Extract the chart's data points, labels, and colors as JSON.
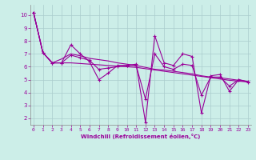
{
  "xlabel": "Windchill (Refroidissement éolien,°C)",
  "background_color": "#cceee8",
  "grid_color": "#aacccc",
  "line_color": "#990099",
  "x_ticks": [
    0,
    1,
    2,
    3,
    4,
    5,
    6,
    7,
    8,
    9,
    10,
    11,
    12,
    13,
    14,
    15,
    16,
    17,
    18,
    19,
    20,
    21,
    22,
    23
  ],
  "y_ticks": [
    2,
    3,
    4,
    5,
    6,
    7,
    8,
    9,
    10
  ],
  "ylim": [
    1.5,
    10.8
  ],
  "xlim": [
    -0.3,
    23.3
  ],
  "series": [
    {
      "y": [
        10.2,
        7.1,
        6.3,
        6.3,
        7.7,
        7.0,
        6.4,
        5.0,
        5.5,
        6.1,
        6.1,
        6.2,
        1.7,
        8.4,
        6.3,
        6.1,
        7.0,
        6.8,
        2.4,
        5.3,
        5.4,
        4.1,
        5.0,
        4.8
      ],
      "marker": true,
      "lw": 0.8
    },
    {
      "y": [
        10.2,
        7.1,
        6.3,
        6.6,
        7.0,
        6.85,
        6.65,
        6.55,
        6.45,
        6.3,
        6.2,
        6.1,
        5.95,
        5.8,
        5.75,
        5.65,
        5.55,
        5.45,
        5.3,
        5.2,
        5.15,
        5.05,
        4.95,
        4.85
      ],
      "marker": false,
      "lw": 0.8
    },
    {
      "y": [
        10.2,
        7.1,
        6.3,
        6.3,
        6.3,
        6.25,
        6.2,
        6.15,
        6.1,
        6.05,
        6.0,
        5.95,
        5.85,
        5.75,
        5.65,
        5.55,
        5.45,
        5.35,
        5.25,
        5.15,
        5.05,
        4.95,
        4.88,
        4.82
      ],
      "marker": false,
      "lw": 0.8
    },
    {
      "y": [
        10.2,
        7.1,
        6.3,
        6.3,
        6.9,
        6.7,
        6.5,
        5.8,
        5.9,
        6.0,
        6.1,
        6.1,
        3.5,
        7.0,
        6.0,
        5.8,
        6.2,
        6.1,
        3.8,
        5.2,
        5.2,
        4.5,
        5.0,
        4.85
      ],
      "marker": true,
      "lw": 0.8
    }
  ]
}
